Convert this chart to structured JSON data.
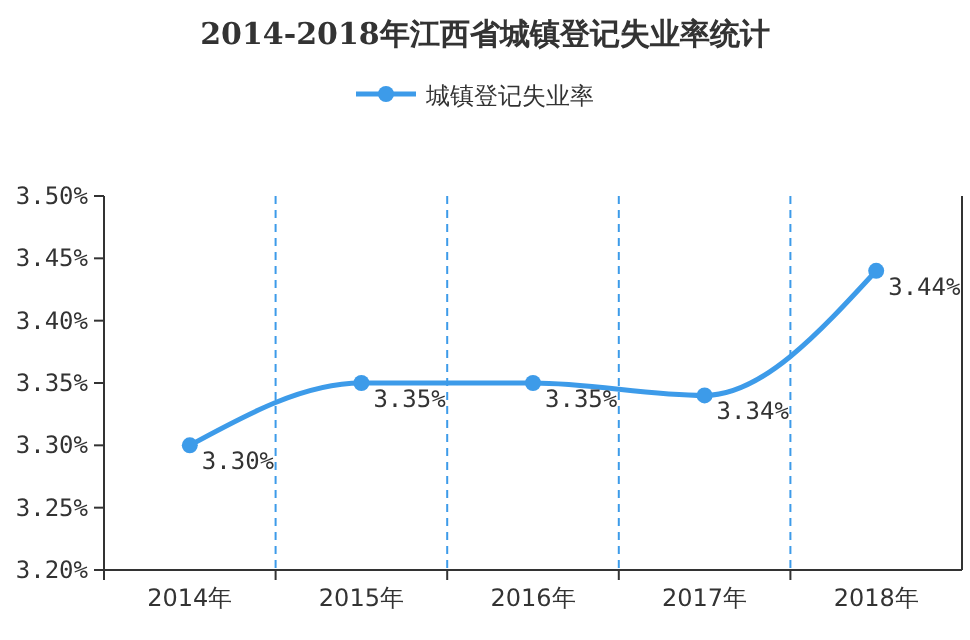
{
  "chart_data": {
    "type": "line",
    "title": "2014-2018年江西省城镇登记失业率统计",
    "categories": [
      "2014年",
      "2015年",
      "2016年",
      "2017年",
      "2018年"
    ],
    "series": [
      {
        "name": "城镇登记失业率",
        "color": "#3d9be9",
        "values": [
          3.3,
          3.35,
          3.35,
          3.34,
          3.44
        ],
        "value_labels": [
          "3.30%",
          "3.35%",
          "3.35%",
          "3.34%",
          "3.44%"
        ]
      }
    ],
    "ylim": [
      3.2,
      3.5
    ],
    "yticks": [
      {
        "value": 3.2,
        "label": "3.20%"
      },
      {
        "value": 3.25,
        "label": "3.25%"
      },
      {
        "value": 3.3,
        "label": "3.30%"
      },
      {
        "value": 3.35,
        "label": "3.35%"
      },
      {
        "value": 3.4,
        "label": "3.40%"
      },
      {
        "value": 3.45,
        "label": "3.45%"
      },
      {
        "value": 3.5,
        "label": "3.50%"
      }
    ],
    "grid": "x",
    "legend": "top",
    "marker": "circle",
    "line_style": "solid"
  }
}
